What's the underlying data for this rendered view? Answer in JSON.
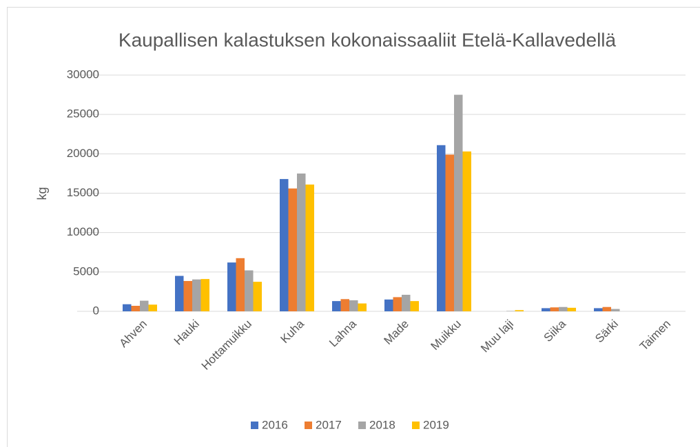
{
  "chart_data": {
    "type": "bar",
    "title": "Kaupallisen kalastuksen kokonaissaaliit Etelä-Kallavedellä",
    "y_label": "kg",
    "categories": [
      "Ahven",
      "Hauki",
      "Hottamuikku",
      "Kuha",
      "Lahna",
      "Made",
      "Muikku",
      "Muu laji",
      "Siika",
      "Särki",
      "Taimen"
    ],
    "series": [
      {
        "name": "2016",
        "color": "#4472c4",
        "values": [
          900,
          4500,
          6200,
          16800,
          1300,
          1500,
          21100,
          0,
          400,
          400,
          0
        ]
      },
      {
        "name": "2017",
        "color": "#ed7d31",
        "values": [
          700,
          3850,
          6750,
          15600,
          1550,
          1800,
          19900,
          0,
          500,
          550,
          0
        ]
      },
      {
        "name": "2018",
        "color": "#a5a5a5",
        "values": [
          1350,
          4050,
          5200,
          17500,
          1400,
          2100,
          27500,
          50,
          550,
          300,
          0
        ]
      },
      {
        "name": "2019",
        "color": "#ffc000",
        "values": [
          850,
          4100,
          3750,
          16100,
          1000,
          1300,
          20300,
          150,
          450,
          0,
          0
        ]
      }
    ],
    "ylim": [
      0,
      30000
    ],
    "yticks": [
      0,
      5000,
      10000,
      15000,
      20000,
      25000,
      30000
    ],
    "grid": true,
    "legend": "bottom"
  }
}
